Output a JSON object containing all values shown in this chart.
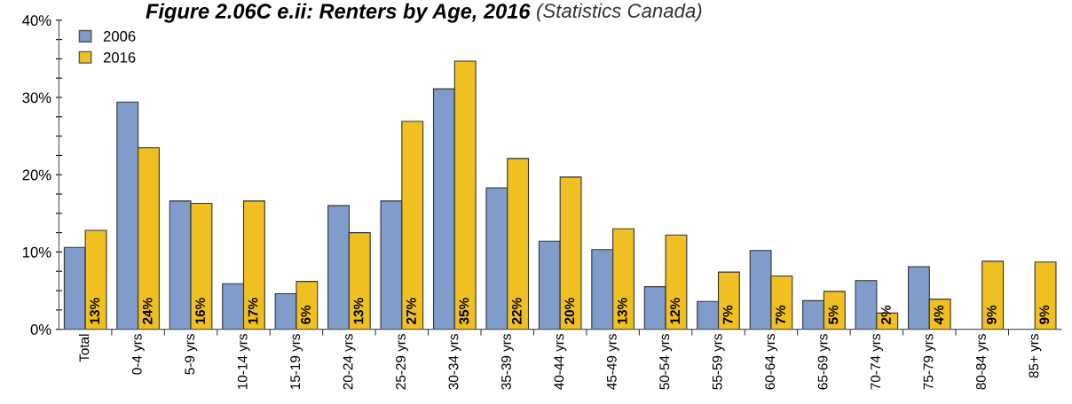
{
  "chart_data": {
    "type": "bar",
    "title": "Figure 2.06C e.ii: Renters by Age, 2016",
    "subtitle": "(Statistics Canada)",
    "categories": [
      "Total",
      "0-4 yrs",
      "5-9 yrs",
      "10-14 yrs",
      "15-19 yrs",
      "20-24 yrs",
      "25-29 yrs",
      "30-34 yrs",
      "35-39 yrs",
      "40-44 yrs",
      "45-49 yrs",
      "50-54 yrs",
      "55-59 yrs",
      "60-64 yrs",
      "65-69 yrs",
      "70-74 yrs",
      "75-79 yrs",
      "80-84 yrs",
      "85+ yrs"
    ],
    "series": [
      {
        "name": "2006",
        "color": "#7f9ccb",
        "values": [
          10.6,
          29.4,
          16.6,
          5.9,
          4.6,
          16.0,
          16.6,
          31.1,
          18.3,
          11.4,
          10.3,
          5.5,
          3.6,
          10.2,
          3.7,
          6.3,
          8.1,
          null,
          null
        ]
      },
      {
        "name": "2016",
        "color": "#f0bf22",
        "values": [
          12.8,
          23.5,
          16.3,
          16.6,
          6.2,
          12.5,
          26.9,
          34.7,
          22.1,
          19.7,
          13.0,
          12.2,
          7.4,
          6.9,
          4.9,
          2.1,
          3.9,
          8.8,
          8.7
        ],
        "value_labels": [
          "13%",
          "24%",
          "16%",
          "17%",
          "6%",
          "13%",
          "27%",
          "35%",
          "22%",
          "20%",
          "13%",
          "12%",
          "7%",
          "7%",
          "5%",
          "2%",
          "4%",
          "9%",
          "9%"
        ]
      }
    ],
    "ylim": [
      0,
      40
    ],
    "yticks": [
      {
        "value": 0,
        "label": "0%"
      },
      {
        "value": 2.5,
        "label": null
      },
      {
        "value": 5,
        "label": null
      },
      {
        "value": 7.5,
        "label": null
      },
      {
        "value": 10,
        "label": "10%"
      },
      {
        "value": 12.5,
        "label": null
      },
      {
        "value": 15,
        "label": null
      },
      {
        "value": 17.5,
        "label": null
      },
      {
        "value": 20,
        "label": "20%"
      },
      {
        "value": 22.5,
        "label": null
      },
      {
        "value": 25,
        "label": null
      },
      {
        "value": 27.5,
        "label": null
      },
      {
        "value": 30,
        "label": "30%"
      },
      {
        "value": 32.5,
        "label": null
      },
      {
        "value": 35,
        "label": null
      },
      {
        "value": 37.5,
        "label": null
      },
      {
        "value": 40,
        "label": "40%"
      }
    ],
    "grid": false,
    "legend": "top left"
  }
}
